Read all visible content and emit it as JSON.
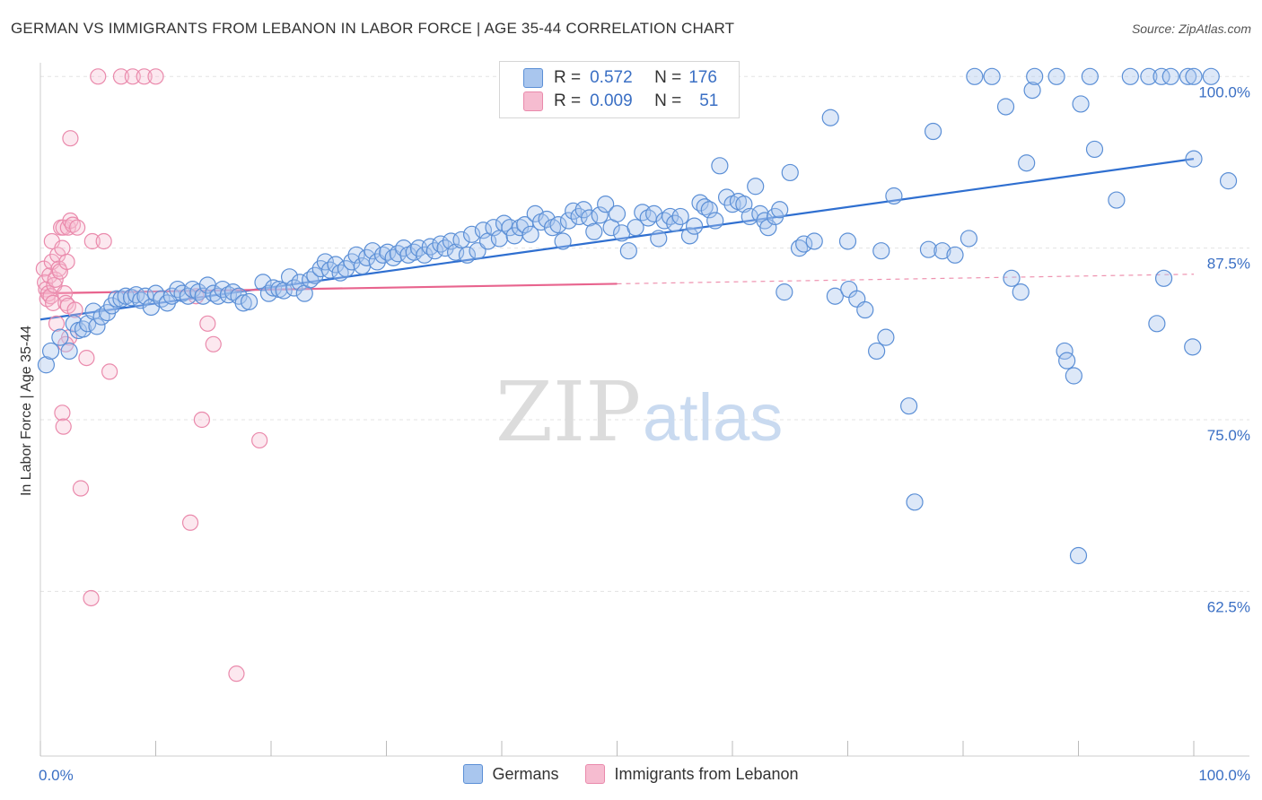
{
  "header": {
    "title": "GERMAN VS IMMIGRANTS FROM LEBANON IN LABOR FORCE | AGE 35-44 CORRELATION CHART",
    "source": "Source: ZipAtlas.com"
  },
  "watermark": {
    "zip": "ZIP",
    "atlas": "atlas"
  },
  "colors": {
    "blue_fill": "#a9c6ee",
    "blue_stroke": "#5b8fd6",
    "blue_line": "#2f6fd0",
    "pink_fill": "#f6bcd0",
    "pink_stroke": "#ea8aac",
    "pink_line": "#e8648e",
    "tick_label": "#3a6fc4",
    "grid": "#e3e3e3"
  },
  "legend_box": {
    "rows": [
      {
        "r_label": "R =",
        "r_value": "0.572",
        "n_label": "N =",
        "n_value": "176"
      },
      {
        "r_label": "R =",
        "r_value": "0.009",
        "n_label": "N =",
        "n_value": "51"
      }
    ]
  },
  "bottom_legend": [
    "Germans",
    "Immigrants from Lebanon"
  ],
  "chart_data": {
    "type": "scatter",
    "title": "GERMAN VS IMMIGRANTS FROM LEBANON IN LABOR FORCE | AGE 35-44 CORRELATION CHART",
    "xlabel": "",
    "ylabel": "In Labor Force | Age 35-44",
    "xlim": [
      0,
      100
    ],
    "ylim": [
      50.5,
      101
    ],
    "x_tick_labels": [
      "0.0%",
      "100.0%"
    ],
    "y_ticks": [
      100.0,
      87.5,
      75.0,
      62.5
    ],
    "y_tick_labels": [
      "100.0%",
      "87.5%",
      "75.0%",
      "62.5%"
    ],
    "grid": true,
    "legend_position": "top-center",
    "series": [
      {
        "name": "Germans",
        "r": 0.572,
        "n": 176,
        "trend": {
          "x": [
            0,
            100
          ],
          "y": [
            82.3,
            94.0
          ]
        },
        "points": [
          [
            0.5,
            79.0
          ],
          [
            0.9,
            80.0
          ],
          [
            1.7,
            81.0
          ],
          [
            2.5,
            80.0
          ],
          [
            2.9,
            82.0
          ],
          [
            3.3,
            81.5
          ],
          [
            3.7,
            81.6
          ],
          [
            4.1,
            82.0
          ],
          [
            4.6,
            82.9
          ],
          [
            4.9,
            81.8
          ],
          [
            5.3,
            82.5
          ],
          [
            5.8,
            82.8
          ],
          [
            6.2,
            83.3
          ],
          [
            6.6,
            83.8
          ],
          [
            7.0,
            83.8
          ],
          [
            7.4,
            84.0
          ],
          [
            7.9,
            83.9
          ],
          [
            8.3,
            84.1
          ],
          [
            8.7,
            83.7
          ],
          [
            9.1,
            84.0
          ],
          [
            9.6,
            83.2
          ],
          [
            10.0,
            84.2
          ],
          [
            10.5,
            83.8
          ],
          [
            11.0,
            83.5
          ],
          [
            11.4,
            84.0
          ],
          [
            11.9,
            84.5
          ],
          [
            12.3,
            84.2
          ],
          [
            12.8,
            84.0
          ],
          [
            13.2,
            84.5
          ],
          [
            13.7,
            84.3
          ],
          [
            14.1,
            84.0
          ],
          [
            14.5,
            84.8
          ],
          [
            15.0,
            84.2
          ],
          [
            15.4,
            84.0
          ],
          [
            15.8,
            84.5
          ],
          [
            16.3,
            84.1
          ],
          [
            16.7,
            84.3
          ],
          [
            17.2,
            84.0
          ],
          [
            17.6,
            83.5
          ],
          [
            18.1,
            83.6
          ],
          [
            19.3,
            85.0
          ],
          [
            19.8,
            84.2
          ],
          [
            20.2,
            84.6
          ],
          [
            20.7,
            84.5
          ],
          [
            21.1,
            84.4
          ],
          [
            21.6,
            85.4
          ],
          [
            22.0,
            84.6
          ],
          [
            22.5,
            85.0
          ],
          [
            22.9,
            84.2
          ],
          [
            23.4,
            85.2
          ],
          [
            23.8,
            85.5
          ],
          [
            24.3,
            86.0
          ],
          [
            24.7,
            86.5
          ],
          [
            25.1,
            85.9
          ],
          [
            25.6,
            86.3
          ],
          [
            26.0,
            85.7
          ],
          [
            26.5,
            86.0
          ],
          [
            27.0,
            86.5
          ],
          [
            27.4,
            87.0
          ],
          [
            27.9,
            86.2
          ],
          [
            28.3,
            86.8
          ],
          [
            28.8,
            87.3
          ],
          [
            29.2,
            86.5
          ],
          [
            29.7,
            87.0
          ],
          [
            30.1,
            87.2
          ],
          [
            30.6,
            86.8
          ],
          [
            31.0,
            87.1
          ],
          [
            31.5,
            87.5
          ],
          [
            31.9,
            87.0
          ],
          [
            32.4,
            87.2
          ],
          [
            32.8,
            87.5
          ],
          [
            33.3,
            87.0
          ],
          [
            33.8,
            87.6
          ],
          [
            34.2,
            87.3
          ],
          [
            34.7,
            87.8
          ],
          [
            35.1,
            87.5
          ],
          [
            35.6,
            88.0
          ],
          [
            36.0,
            87.2
          ],
          [
            36.5,
            88.1
          ],
          [
            37.0,
            87.0
          ],
          [
            37.4,
            88.5
          ],
          [
            37.9,
            87.3
          ],
          [
            38.4,
            88.8
          ],
          [
            38.8,
            88.0
          ],
          [
            39.3,
            89.0
          ],
          [
            39.8,
            88.2
          ],
          [
            40.2,
            89.3
          ],
          [
            40.7,
            89.0
          ],
          [
            41.1,
            88.4
          ],
          [
            41.6,
            89.0
          ],
          [
            42.0,
            89.2
          ],
          [
            42.5,
            88.5
          ],
          [
            42.9,
            90.0
          ],
          [
            43.4,
            89.4
          ],
          [
            43.9,
            89.6
          ],
          [
            44.4,
            89.0
          ],
          [
            44.9,
            89.2
          ],
          [
            45.3,
            88.0
          ],
          [
            45.8,
            89.5
          ],
          [
            46.2,
            90.2
          ],
          [
            46.7,
            89.8
          ],
          [
            47.1,
            90.3
          ],
          [
            47.6,
            89.7
          ],
          [
            48.0,
            88.7
          ],
          [
            48.5,
            89.9
          ],
          [
            49.0,
            90.7
          ],
          [
            49.5,
            89.0
          ],
          [
            50.0,
            90.0
          ],
          [
            50.4,
            88.6
          ],
          [
            51.0,
            87.3
          ],
          [
            51.6,
            89.0
          ],
          [
            52.2,
            90.1
          ],
          [
            52.7,
            89.7
          ],
          [
            53.2,
            90.0
          ],
          [
            53.6,
            88.2
          ],
          [
            54.1,
            89.5
          ],
          [
            54.6,
            89.8
          ],
          [
            55.0,
            89.3
          ],
          [
            55.5,
            89.8
          ],
          [
            56.3,
            88.4
          ],
          [
            56.7,
            89.1
          ],
          [
            57.2,
            90.8
          ],
          [
            57.6,
            90.5
          ],
          [
            58.0,
            90.3
          ],
          [
            58.5,
            89.5
          ],
          [
            58.9,
            93.5
          ],
          [
            59.5,
            91.2
          ],
          [
            60.0,
            90.7
          ],
          [
            60.5,
            90.9
          ],
          [
            61.0,
            90.7
          ],
          [
            61.5,
            89.8
          ],
          [
            62.0,
            92.0
          ],
          [
            62.4,
            90.0
          ],
          [
            62.8,
            89.5
          ],
          [
            63.1,
            89.0
          ],
          [
            63.7,
            89.8
          ],
          [
            64.1,
            90.3
          ],
          [
            64.5,
            84.3
          ],
          [
            65.0,
            93.0
          ],
          [
            65.8,
            87.5
          ],
          [
            66.2,
            87.8
          ],
          [
            67.1,
            88.0
          ],
          [
            68.5,
            97.0
          ],
          [
            68.9,
            84.0
          ],
          [
            70.0,
            88.0
          ],
          [
            70.1,
            84.5
          ],
          [
            70.8,
            83.8
          ],
          [
            71.5,
            83.0
          ],
          [
            72.5,
            80.0
          ],
          [
            72.9,
            87.3
          ],
          [
            73.3,
            81.0
          ],
          [
            74.0,
            91.3
          ],
          [
            75.3,
            76.0
          ],
          [
            75.8,
            69.0
          ],
          [
            77.0,
            87.4
          ],
          [
            77.4,
            96.0
          ],
          [
            78.2,
            87.3
          ],
          [
            79.3,
            87.0
          ],
          [
            80.5,
            88.2
          ],
          [
            81.0,
            100.0
          ],
          [
            82.5,
            100.0
          ],
          [
            83.7,
            97.8
          ],
          [
            84.2,
            85.3
          ],
          [
            85.0,
            84.3
          ],
          [
            85.5,
            93.7
          ],
          [
            86.0,
            99.0
          ],
          [
            86.2,
            100.0
          ],
          [
            88.1,
            100.0
          ],
          [
            88.8,
            80.0
          ],
          [
            89.0,
            79.3
          ],
          [
            89.6,
            78.2
          ],
          [
            90.0,
            65.1
          ],
          [
            90.2,
            98.0
          ],
          [
            91.0,
            100.0
          ],
          [
            91.4,
            94.7
          ],
          [
            93.3,
            91.0
          ],
          [
            94.5,
            100.0
          ],
          [
            96.1,
            100.0
          ],
          [
            97.2,
            100.0
          ],
          [
            97.4,
            85.3
          ],
          [
            98.0,
            100.0
          ],
          [
            99.5,
            100.0
          ],
          [
            100.0,
            100.0
          ],
          [
            101.5,
            100.0
          ],
          [
            96.8,
            82.0
          ],
          [
            103.0,
            92.4
          ],
          [
            99.9,
            80.3
          ],
          [
            100.0,
            94.0
          ]
        ]
      },
      {
        "name": "Immigrants from Lebanon",
        "r": 0.009,
        "n": 51,
        "trend": {
          "x": [
            0,
            50
          ],
          "y": [
            84.2,
            84.9
          ]
        },
        "trend_dashed": {
          "x": [
            50,
            100
          ],
          "y": [
            84.9,
            85.6
          ]
        },
        "points": [
          [
            0.3,
            86.0
          ],
          [
            0.4,
            85.0
          ],
          [
            0.5,
            84.5
          ],
          [
            0.6,
            83.8
          ],
          [
            0.7,
            84.2
          ],
          [
            0.8,
            85.5
          ],
          [
            0.9,
            84.0
          ],
          [
            1.0,
            86.5
          ],
          [
            1.0,
            88.0
          ],
          [
            1.1,
            83.5
          ],
          [
            1.2,
            84.8
          ],
          [
            1.3,
            85.2
          ],
          [
            1.4,
            82.0
          ],
          [
            1.5,
            87.0
          ],
          [
            1.6,
            86.0
          ],
          [
            1.7,
            85.8
          ],
          [
            1.8,
            89.0
          ],
          [
            1.9,
            87.5
          ],
          [
            2.0,
            89.0
          ],
          [
            2.1,
            84.2
          ],
          [
            2.2,
            83.5
          ],
          [
            2.3,
            86.5
          ],
          [
            2.4,
            83.3
          ],
          [
            2.5,
            81.0
          ],
          [
            2.6,
            95.5
          ],
          [
            1.9,
            75.5
          ],
          [
            2.0,
            74.5
          ],
          [
            2.2,
            80.5
          ],
          [
            2.4,
            89.0
          ],
          [
            2.6,
            89.5
          ],
          [
            2.8,
            89.2
          ],
          [
            3.0,
            83.0
          ],
          [
            3.2,
            89.0
          ],
          [
            3.5,
            70.0
          ],
          [
            4.0,
            79.5
          ],
          [
            4.5,
            88.0
          ],
          [
            4.4,
            62.0
          ],
          [
            5.0,
            100.0
          ],
          [
            5.5,
            88.0
          ],
          [
            6.0,
            78.5
          ],
          [
            7.0,
            100.0
          ],
          [
            8.0,
            100.0
          ],
          [
            9.0,
            100.0
          ],
          [
            10.0,
            100.0
          ],
          [
            13.0,
            67.5
          ],
          [
            13.5,
            84.0
          ],
          [
            14.0,
            75.0
          ],
          [
            14.5,
            82.0
          ],
          [
            15.0,
            80.5
          ],
          [
            17.0,
            56.5
          ],
          [
            19.0,
            73.5
          ]
        ]
      }
    ]
  }
}
